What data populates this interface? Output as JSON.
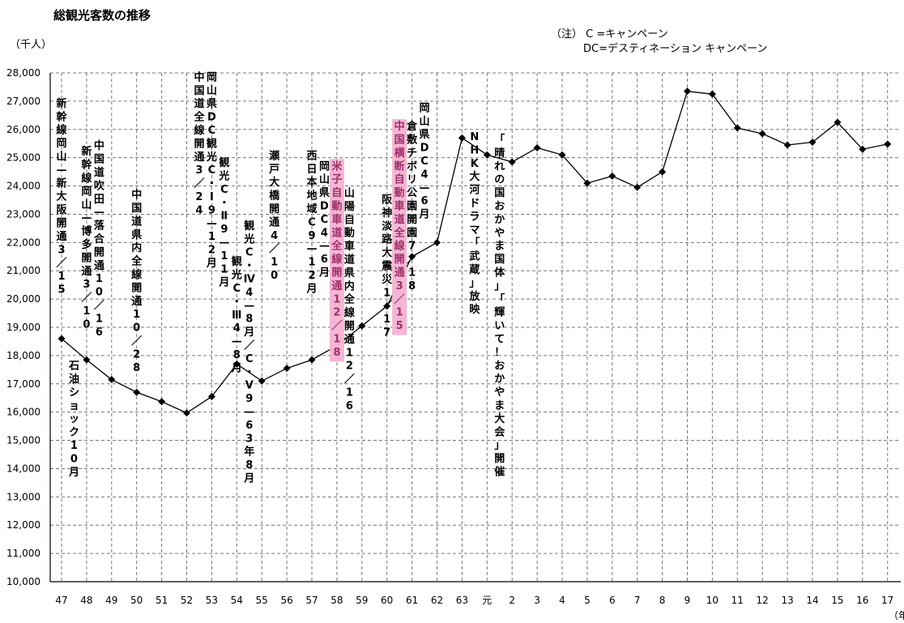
{
  "chart_data": {
    "type": "line",
    "title": "総観光客数の推移",
    "ylabel": "（千人）",
    "xlabel": "（年",
    "note": [
      "（注） C =キャンペーン",
      "DC=デスティネーション キャンペーン"
    ],
    "ylim": [
      10000,
      28000
    ],
    "y_ticks": [
      "10,000",
      "11,000",
      "12,000",
      "13,000",
      "14,000",
      "15,000",
      "16,000",
      "17,000",
      "18,000",
      "19,000",
      "20,000",
      "21,000",
      "22,000",
      "23,000",
      "24,000",
      "25,000",
      "26,000",
      "27,000",
      "28,000"
    ],
    "categories": [
      "47",
      "48",
      "49",
      "50",
      "51",
      "52",
      "53",
      "54",
      "55",
      "56",
      "57",
      "58",
      "59",
      "60",
      "61",
      "62",
      "63",
      "元",
      "2",
      "3",
      "4",
      "5",
      "6",
      "7",
      "8",
      "9",
      "10",
      "11",
      "12",
      "13",
      "14",
      "15",
      "16",
      "17"
    ],
    "grid": true,
    "series": [
      {
        "values": [
          18600,
          17850,
          17150,
          16700,
          16370,
          15970,
          16550,
          17700,
          17100,
          17550,
          17850,
          18350,
          19050,
          19750,
          21500,
          22000,
          25700,
          25100,
          24850,
          25350,
          25100,
          24100,
          24350,
          23950,
          24500,
          27350,
          27250,
          26050,
          25850,
          25450,
          25550,
          26250,
          25300,
          25480
        ]
      }
    ],
    "annotations": [
      {
        "index": 0,
        "start_value": 26800,
        "text": "新幹線岡山—新大阪開通3／15",
        "highlight": false
      },
      {
        "index": 1,
        "start_value": 17520,
        "text": "石油ショック10月",
        "highlight": false
      },
      {
        "index": 2,
        "start_value": 25100,
        "text": "新幹線岡山—博多開通3／10",
        "highlight": false
      },
      {
        "index": 3,
        "start_value": 25300,
        "text": "中国道吹田—落合開通10／16",
        "highlight": false
      },
      {
        "index": 6,
        "start_value": 23570,
        "text": "中国道県内全線開通10／28",
        "highlight": false
      },
      {
        "index": 11,
        "start_value": 27730,
        "text": "中国道全線開通3／24",
        "highlight": false
      },
      {
        "index": 12,
        "start_value": 27730,
        "text": "岡山県DC観光C・Ⅰ9—12月",
        "highlight": false
      },
      {
        "index": 13,
        "start_value": 24700,
        "text": "観光C・Ⅱ9—11月",
        "highlight": false
      },
      {
        "index": 14,
        "start_value": 21200,
        "text": "観光C・Ⅲ4—8月",
        "highlight": false
      },
      {
        "index": 15,
        "start_value": 22470,
        "text": "観光C・Ⅳ4—8月／C・Ⅴ9—63年8月",
        "highlight": false
      },
      {
        "index": 17,
        "start_value": 24950,
        "text": "瀬戸大橋開通4／10",
        "highlight": false
      },
      {
        "index": 20,
        "start_value": 24950,
        "text": "西日本地域C9—12月",
        "highlight": false
      },
      {
        "index": 21,
        "start_value": 24580,
        "text": "岡山県DC4—6月",
        "highlight": false
      },
      {
        "index": 22,
        "start_value": 24580,
        "text": "米子自動車道全線開通12／18",
        "highlight": true
      },
      {
        "index": 23,
        "start_value": 23630,
        "text": "山陽自動車道県内全線開通12／16",
        "highlight": false
      },
      {
        "index": 26,
        "start_value": 23400,
        "text": "阪神淡路大震災1／17",
        "highlight": false
      },
      {
        "index": 27,
        "start_value": 25990,
        "text": "中国横断自動車道全線開通3／15",
        "highlight": true
      },
      {
        "index": 28,
        "start_value": 25990,
        "text": "倉敷チボリ公園開園7／18",
        "highlight": false
      },
      {
        "index": 29,
        "start_value": 26640,
        "text": "岡山県DC4—6月",
        "highlight": false
      },
      {
        "index": 33,
        "start_value": 25620,
        "text": "NHK大河ドラマ「武蔵」放映",
        "highlight": false
      },
      {
        "index": 35,
        "start_value": 25520,
        "text": "「晴れの国おかやま国体」「輝いて！おかやま大会」開催",
        "highlight": false
      }
    ]
  }
}
